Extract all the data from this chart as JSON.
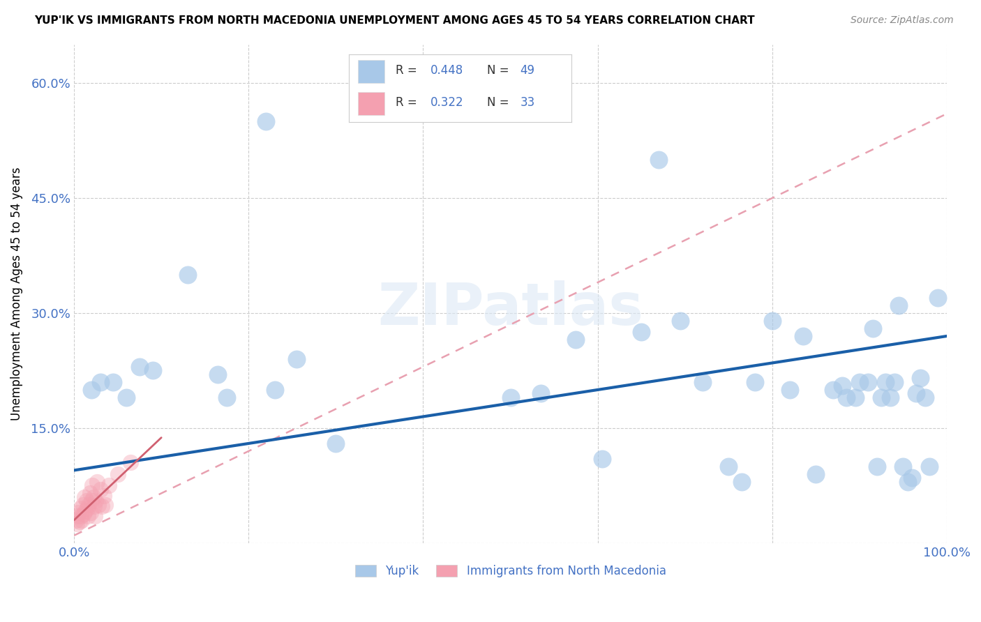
{
  "title": "YUP'IK VS IMMIGRANTS FROM NORTH MACEDONIA UNEMPLOYMENT AMONG AGES 45 TO 54 YEARS CORRELATION CHART",
  "source": "Source: ZipAtlas.com",
  "ylabel": "Unemployment Among Ages 45 to 54 years",
  "xlim": [
    0,
    1.0
  ],
  "ylim": [
    0,
    0.65
  ],
  "xticks": [
    0.0,
    0.2,
    0.4,
    0.6,
    0.8,
    1.0
  ],
  "xticklabels": [
    "0.0%",
    "",
    "",
    "",
    "",
    "100.0%"
  ],
  "yticks": [
    0.0,
    0.15,
    0.3,
    0.45,
    0.6
  ],
  "yticklabels": [
    "",
    "15.0%",
    "30.0%",
    "45.0%",
    "60.0%"
  ],
  "background_color": "#ffffff",
  "watermark": "ZIPatlas",
  "blue_color": "#a8c8e8",
  "pink_color": "#f4a0b0",
  "blue_line_color": "#1a5fa8",
  "pink_line_color": "#d06070",
  "pink_dash_color": "#e8a0b0",
  "grid_color": "#cccccc",
  "tick_color": "#4472c4",
  "yup_ik_x": [
    0.02,
    0.03,
    0.045,
    0.06,
    0.075,
    0.09,
    0.13,
    0.165,
    0.175,
    0.22,
    0.23,
    0.255,
    0.3,
    0.5,
    0.535,
    0.575,
    0.605,
    0.65,
    0.67,
    0.695,
    0.72,
    0.75,
    0.765,
    0.78,
    0.8,
    0.82,
    0.835,
    0.85,
    0.87,
    0.88,
    0.885,
    0.895,
    0.9,
    0.91,
    0.915,
    0.92,
    0.925,
    0.93,
    0.935,
    0.94,
    0.945,
    0.95,
    0.955,
    0.96,
    0.965,
    0.97,
    0.975,
    0.98,
    0.99
  ],
  "yup_ik_y": [
    0.2,
    0.21,
    0.21,
    0.19,
    0.23,
    0.225,
    0.35,
    0.22,
    0.19,
    0.55,
    0.2,
    0.24,
    0.13,
    0.19,
    0.195,
    0.265,
    0.11,
    0.275,
    0.5,
    0.29,
    0.21,
    0.1,
    0.08,
    0.21,
    0.29,
    0.2,
    0.27,
    0.09,
    0.2,
    0.205,
    0.19,
    0.19,
    0.21,
    0.21,
    0.28,
    0.1,
    0.19,
    0.21,
    0.19,
    0.21,
    0.31,
    0.1,
    0.08,
    0.085,
    0.195,
    0.215,
    0.19,
    0.1,
    0.32
  ],
  "macedonia_x": [
    0.002,
    0.003,
    0.004,
    0.005,
    0.006,
    0.007,
    0.008,
    0.009,
    0.01,
    0.011,
    0.012,
    0.013,
    0.014,
    0.015,
    0.016,
    0.017,
    0.018,
    0.019,
    0.02,
    0.021,
    0.022,
    0.023,
    0.024,
    0.025,
    0.026,
    0.028,
    0.03,
    0.032,
    0.034,
    0.036,
    0.04,
    0.05,
    0.065
  ],
  "macedonia_y": [
    0.03,
    0.025,
    0.035,
    0.04,
    0.028,
    0.045,
    0.035,
    0.03,
    0.05,
    0.038,
    0.06,
    0.042,
    0.055,
    0.045,
    0.035,
    0.05,
    0.065,
    0.04,
    0.055,
    0.075,
    0.06,
    0.048,
    0.035,
    0.055,
    0.08,
    0.05,
    0.07,
    0.048,
    0.062,
    0.05,
    0.075,
    0.09,
    0.105
  ],
  "blue_trend_x0": 0.0,
  "blue_trend_y0": 0.095,
  "blue_trend_x1": 1.0,
  "blue_trend_y1": 0.27,
  "pink_trend_x0": 0.0,
  "pink_trend_y0": 0.01,
  "pink_trend_x1": 1.0,
  "pink_trend_y1": 0.56
}
